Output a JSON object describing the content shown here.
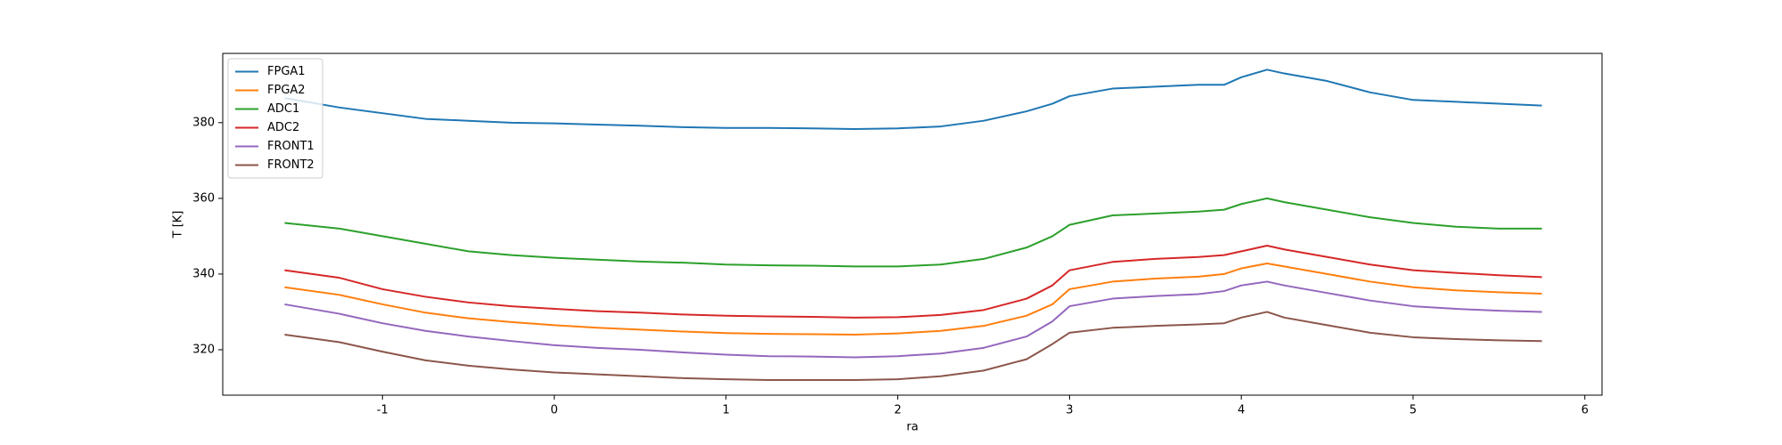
{
  "chart_data": {
    "type": "line",
    "xlabel": "ra",
    "ylabel": "T [K]",
    "x": [
      -1.57,
      -1.25,
      -1,
      -0.75,
      -0.5,
      -0.25,
      0,
      0.25,
      0.5,
      0.75,
      1,
      1.25,
      1.5,
      1.75,
      2,
      2.25,
      2.5,
      2.75,
      2.9,
      3,
      3.25,
      3.5,
      3.75,
      3.9,
      4,
      4.15,
      4.25,
      4.5,
      4.75,
      5,
      5.25,
      5.5,
      5.75
    ],
    "series": [
      {
        "name": "FPGA1",
        "color": "#1f77b4",
        "values": [
          386.5,
          384,
          382.5,
          381,
          380.5,
          380,
          379.8,
          379.5,
          379.2,
          378.8,
          378.6,
          378.6,
          378.5,
          378.3,
          378.5,
          379,
          380.5,
          383,
          385,
          387,
          389,
          389.5,
          390,
          390,
          392,
          394,
          393,
          391,
          388,
          386,
          385.5,
          385,
          384.5
        ]
      },
      {
        "name": "FPGA2",
        "color": "#ff7f0e",
        "values": [
          336.5,
          334.5,
          332,
          329.8,
          328.3,
          327.3,
          326.5,
          325.8,
          325.3,
          324.8,
          324.4,
          324.2,
          324.1,
          324,
          324.3,
          325,
          326.3,
          329,
          332,
          336,
          338,
          338.8,
          339.3,
          340,
          341.5,
          342.8,
          342,
          340,
          338,
          336.5,
          335.7,
          335.2,
          334.8
        ]
      },
      {
        "name": "ADC1",
        "color": "#2ca02c",
        "values": [
          353.5,
          352,
          350,
          348,
          346,
          345,
          344.3,
          343.8,
          343.3,
          343,
          342.5,
          342.3,
          342.2,
          342,
          342,
          342.5,
          344,
          347,
          350,
          353,
          355.5,
          356,
          356.5,
          357,
          358.5,
          360,
          359,
          357,
          355,
          353.5,
          352.5,
          352,
          352
        ]
      },
      {
        "name": "ADC2",
        "color": "#d62728",
        "values": [
          341,
          339,
          336,
          334,
          332.5,
          331.5,
          330.8,
          330.2,
          329.8,
          329.3,
          329,
          328.8,
          328.7,
          328.5,
          328.6,
          329.2,
          330.5,
          333.5,
          337,
          341,
          343.2,
          344,
          344.5,
          345,
          346,
          347.5,
          346.5,
          344.5,
          342.5,
          341,
          340.3,
          339.7,
          339.2
        ]
      },
      {
        "name": "FRONT1",
        "color": "#9467bd",
        "values": [
          332,
          329.5,
          327,
          325,
          323.5,
          322.3,
          321.2,
          320.5,
          320,
          319.3,
          318.7,
          318.3,
          318.2,
          318,
          318.3,
          319,
          320.5,
          323.5,
          327.5,
          331.5,
          333.5,
          334.2,
          334.7,
          335.5,
          337,
          338,
          337,
          335,
          333,
          331.5,
          330.8,
          330.3,
          330
        ]
      },
      {
        "name": "FRONT2",
        "color": "#8c564b",
        "values": [
          324,
          322,
          319.5,
          317.2,
          315.8,
          314.8,
          314,
          313.5,
          313,
          312.5,
          312.2,
          312,
          312,
          312,
          312.2,
          313,
          314.5,
          317.5,
          321.5,
          324.5,
          325.8,
          326.3,
          326.7,
          327,
          328.5,
          330,
          328.5,
          326.5,
          324.5,
          323.3,
          322.8,
          322.5,
          322.3
        ]
      }
    ],
    "xlim": [
      -1.93,
      6.1
    ],
    "xticks": [
      -1,
      0,
      1,
      2,
      3,
      4,
      5,
      6
    ],
    "ylim": [
      308,
      398.3
    ],
    "yticks": [
      320,
      340,
      360,
      380
    ],
    "grid": false,
    "legend": "upper-left"
  }
}
